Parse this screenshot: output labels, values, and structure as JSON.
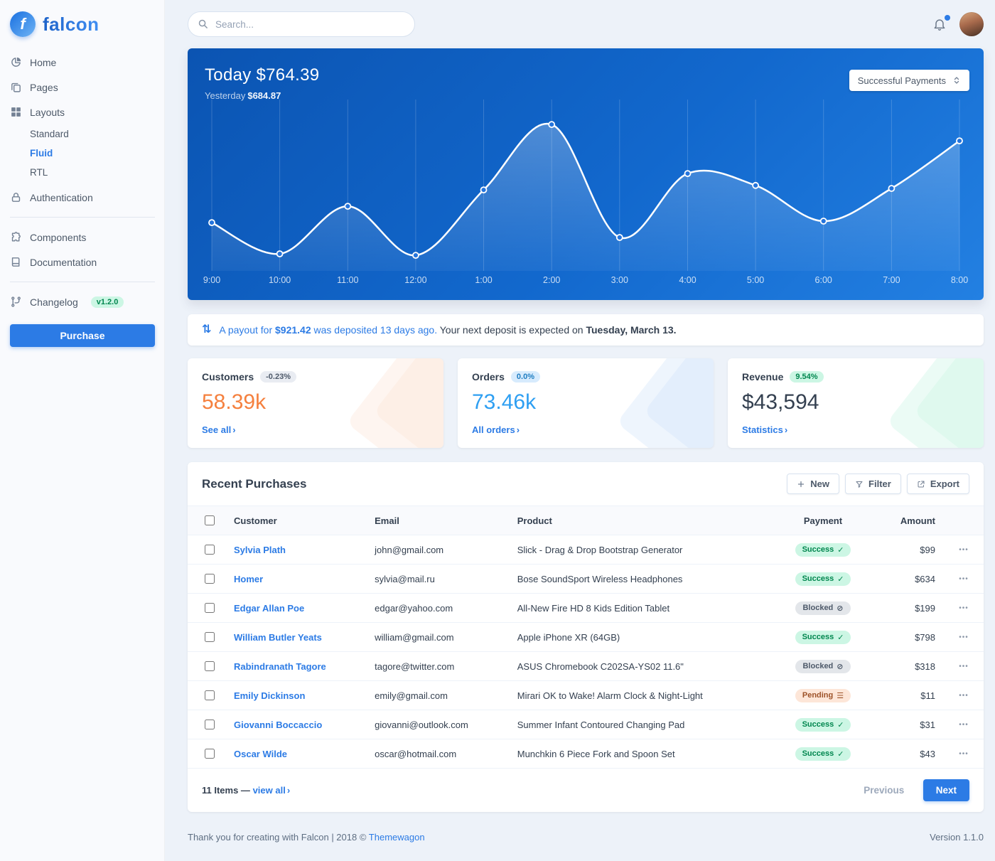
{
  "brand": {
    "name": "falcon",
    "logo_letter": "f"
  },
  "header": {
    "search_placeholder": "Search..."
  },
  "sidebar": {
    "items": [
      {
        "label": "Home",
        "icon": "pie-chart-icon"
      },
      {
        "label": "Pages",
        "icon": "copy-icon"
      },
      {
        "label": "Layouts",
        "icon": "grid-icon",
        "children": [
          {
            "label": "Standard",
            "active": false
          },
          {
            "label": "Fluid",
            "active": true
          },
          {
            "label": "RTL",
            "active": false
          }
        ]
      },
      {
        "label": "Authentication",
        "icon": "lock-icon",
        "divider_after": true
      },
      {
        "label": "Components",
        "icon": "puzzle-icon"
      },
      {
        "label": "Documentation",
        "icon": "book-icon",
        "divider_after": true
      },
      {
        "label": "Changelog",
        "icon": "code-branch-icon",
        "badge": "v1.2.0"
      }
    ],
    "purchase_label": "Purchase"
  },
  "hero": {
    "title_label": "Today",
    "title_value": "$764.39",
    "subtitle_label": "Yesterday",
    "subtitle_value": "$684.87",
    "dropdown_label": "Successful Payments"
  },
  "chart_data": {
    "type": "line",
    "title": "Today $764.39",
    "subtitle": "Yesterday $684.87",
    "legend": "Successful Payments",
    "x": [
      "9:00",
      "10:00",
      "11:00",
      "12:00",
      "1:00",
      "2:00",
      "3:00",
      "4:00",
      "5:00",
      "6:00",
      "7:00",
      "8:00"
    ],
    "values": [
      32,
      11,
      43,
      10,
      54,
      98,
      22,
      65,
      57,
      33,
      55,
      87
    ],
    "ylim": [
      0,
      110
    ],
    "grid": "vertical-only",
    "line_color": "#ffffff",
    "background": [
      "#0b54b2",
      "#2380e2"
    ]
  },
  "payout": {
    "link_pre": "A payout for ",
    "amount": "$921.42",
    "link_post": " was deposited 13 days ago.",
    "rest": " Your next deposit is expected on ",
    "date": "Tuesday, March 13."
  },
  "stats": [
    {
      "id": "customers",
      "title": "Customers",
      "badge": "-0.23%",
      "badge_style": "neutral",
      "value": "58.39k",
      "value_color": "#f5803e",
      "accent": "#f5803e",
      "link_label": "See all"
    },
    {
      "id": "orders",
      "title": "Orders",
      "badge": "0.0%",
      "badge_style": "info",
      "value": "73.46k",
      "value_color": "#2e9ff2",
      "accent": "#2c7be5",
      "link_label": "All orders"
    },
    {
      "id": "revenue",
      "title": "Revenue",
      "badge": "9.54%",
      "badge_style": "success",
      "value": "$43,594",
      "value_color": "#344050",
      "accent": "#00d27a",
      "link_label": "Statistics"
    }
  ],
  "purchases": {
    "title": "Recent Purchases",
    "buttons": {
      "new": "New",
      "filter": "Filter",
      "export": "Export"
    },
    "columns": [
      "Customer",
      "Email",
      "Product",
      "Payment",
      "Amount"
    ],
    "rows": [
      {
        "customer": "Sylvia Plath",
        "email": "john@gmail.com",
        "product": "Slick - Drag & Drop Bootstrap Generator",
        "payment": "Success",
        "payment_style": "success",
        "amount": "$99"
      },
      {
        "customer": "Homer",
        "email": "sylvia@mail.ru",
        "product": "Bose SoundSport Wireless Headphones",
        "payment": "Success",
        "payment_style": "success",
        "amount": "$634"
      },
      {
        "customer": "Edgar Allan Poe",
        "email": "edgar@yahoo.com",
        "product": "All-New Fire HD 8 Kids Edition Tablet",
        "payment": "Blocked",
        "payment_style": "blocked",
        "amount": "$199"
      },
      {
        "customer": "William Butler Yeats",
        "email": "william@gmail.com",
        "product": "Apple iPhone XR (64GB)",
        "payment": "Success",
        "payment_style": "success",
        "amount": "$798"
      },
      {
        "customer": "Rabindranath Tagore",
        "email": "tagore@twitter.com",
        "product": "ASUS Chromebook C202SA-YS02 11.6\"",
        "payment": "Blocked",
        "payment_style": "blocked",
        "amount": "$318"
      },
      {
        "customer": "Emily Dickinson",
        "email": "emily@gmail.com",
        "product": "Mirari OK to Wake! Alarm Clock & Night-Light",
        "payment": "Pending",
        "payment_style": "pending",
        "amount": "$11"
      },
      {
        "customer": "Giovanni Boccaccio",
        "email": "giovanni@outlook.com",
        "product": "Summer Infant Contoured Changing Pad",
        "payment": "Success",
        "payment_style": "success",
        "amount": "$31"
      },
      {
        "customer": "Oscar Wilde",
        "email": "oscar@hotmail.com",
        "product": "Munchkin 6 Piece Fork and Spoon Set",
        "payment": "Success",
        "payment_style": "success",
        "amount": "$43"
      }
    ],
    "footer": {
      "items_label": "11 Items —",
      "view_all_label": "view all",
      "previous_label": "Previous",
      "next_label": "Next"
    }
  },
  "footer": {
    "left_text": "Thank you for creating with Falcon | 2018 © ",
    "link_label": "Themewagon",
    "version": "Version 1.1.0"
  }
}
